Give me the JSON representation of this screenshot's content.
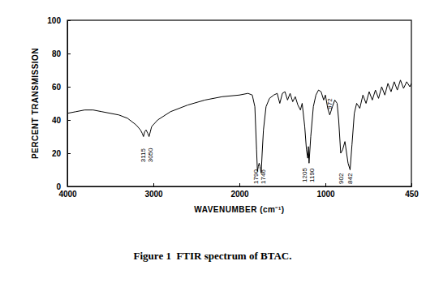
{
  "chart_data": {
    "type": "line",
    "title": "Figure 1  FTIR spectrum of BTAC.",
    "x_label": "WAVENUMBER (cm⁻¹)",
    "y_label": "PERCENT TRANSMISSION",
    "color": "#000000",
    "grid": false,
    "xlim": [
      4000,
      450
    ],
    "xticks": [
      4000,
      3000,
      2000,
      1000,
      450
    ],
    "ylim": [
      0,
      100
    ],
    "yticks": [
      0,
      20,
      40,
      60,
      80,
      100
    ],
    "x": [
      4000,
      3900,
      3800,
      3700,
      3600,
      3500,
      3400,
      3300,
      3200,
      3150,
      3130,
      3115,
      3100,
      3085,
      3065,
      3050,
      3035,
      3020,
      2950,
      2800,
      2600,
      2400,
      2200,
      2000,
      1900,
      1850,
      1820,
      1800,
      1790,
      1780,
      1770,
      1760,
      1746,
      1735,
      1720,
      1690,
      1650,
      1600,
      1560,
      1530,
      1500,
      1470,
      1440,
      1410,
      1380,
      1350,
      1320,
      1290,
      1270,
      1240,
      1220,
      1205,
      1198,
      1190,
      1170,
      1140,
      1110,
      1080,
      1050,
      1020,
      1000,
      985,
      972,
      955,
      940,
      925,
      915,
      902,
      890,
      875,
      855,
      842,
      830,
      815,
      800,
      780,
      760,
      740,
      720,
      700,
      680,
      660,
      640,
      620,
      600,
      580,
      560,
      540,
      520,
      500,
      480,
      460,
      450
    ],
    "values": [
      44,
      45,
      46,
      46,
      45,
      44,
      43,
      41,
      37,
      34,
      32,
      30,
      33,
      34,
      32,
      30,
      33,
      36,
      40,
      45,
      49,
      52,
      54,
      55,
      56,
      55,
      48,
      22,
      9,
      12,
      14,
      12,
      8,
      20,
      34,
      48,
      53,
      55,
      56,
      50,
      56,
      57,
      52,
      56,
      51,
      54,
      49,
      46,
      50,
      36,
      22,
      17,
      24,
      14,
      30,
      48,
      55,
      58,
      57,
      52,
      55,
      47,
      43,
      48,
      52,
      50,
      40,
      20,
      22,
      27,
      14,
      10,
      25,
      44,
      50,
      47,
      55,
      50,
      57,
      52,
      58,
      53,
      60,
      55,
      62,
      57,
      63,
      58,
      64,
      59,
      63,
      60,
      62
    ],
    "annotations": [
      {
        "text": "3115",
        "x": 3115,
        "y": 14
      },
      {
        "text": "3050",
        "x": 3050,
        "y": 14
      },
      {
        "text": "1790",
        "x": 1790,
        "y": 1
      },
      {
        "text": "1746",
        "x": 1746,
        "y": 1
      },
      {
        "text": "1205",
        "x": 1205,
        "y": 2
      },
      {
        "text": "1190",
        "x": 1190,
        "y": 2
      },
      {
        "text": "972",
        "x": 972,
        "y": 46
      },
      {
        "text": "902",
        "x": 902,
        "y": 1
      },
      {
        "text": "842",
        "x": 842,
        "y": 1
      }
    ]
  }
}
